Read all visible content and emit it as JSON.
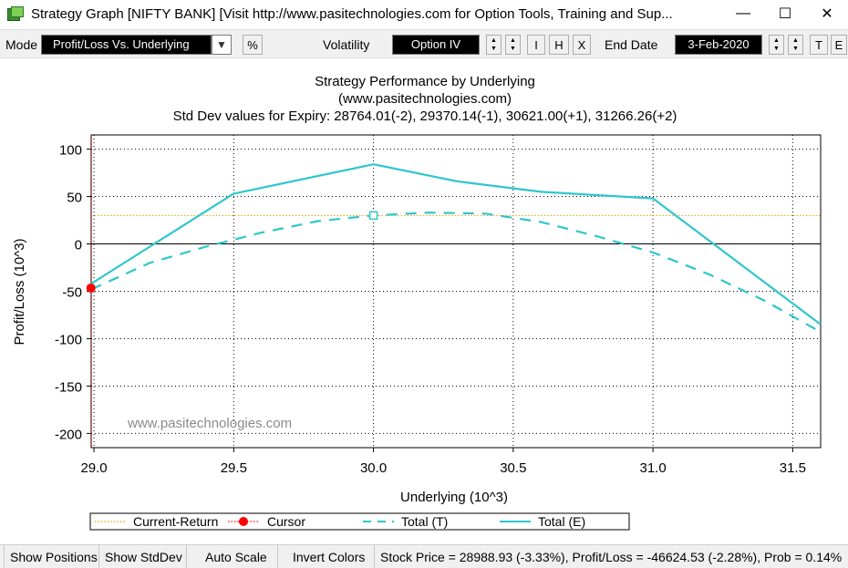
{
  "window": {
    "title": "Strategy Graph [NIFTY BANK]     [Visit  http://www.pasitechnologies.com  for Option Tools, Training and Sup...",
    "minimize_glyph": "—",
    "maximize_glyph": "☐",
    "close_glyph": "✕"
  },
  "toolbar": {
    "mode_label": "Mode",
    "mode_value": "Profit/Loss Vs. Underlying",
    "percent_button": "%",
    "volatility_label": "Volatility",
    "volatility_value": "Option IV",
    "i_button": "I",
    "h_button": "H",
    "x_button": "X",
    "end_date_label": "End Date",
    "end_date_value": "3-Feb-2020",
    "t_button": "T",
    "e_button": "E"
  },
  "chart_data": {
    "type": "line",
    "title": "Strategy Performance by Underlying",
    "subtitle": "(www.pasitechnologies.com)",
    "subtitle2": "Std Dev values for Expiry: 28764.01(-2), 29370.14(-1), 30621.00(+1), 31266.26(+2)",
    "xlabel": "Underlying (10^3)",
    "ylabel": "Profit/Loss (10^3)",
    "watermark": "www.pasitechnologies.com",
    "xlim": [
      28.99,
      31.6
    ],
    "ylim": [
      -215,
      115
    ],
    "x_ticks": [
      "29.0",
      "29.5",
      "30.0",
      "30.5",
      "31.0",
      "31.5"
    ],
    "x_tick_values": [
      29.0,
      29.5,
      30.0,
      30.5,
      31.0,
      31.5
    ],
    "y_ticks": [
      "100",
      "50",
      "0",
      "-50",
      "-100",
      "-150",
      "-200"
    ],
    "y_tick_values": [
      100,
      50,
      0,
      -50,
      -100,
      -150,
      -200
    ],
    "grid": true,
    "legend_position": "bottom",
    "current_return": 30,
    "cursor": {
      "x": 28.989,
      "y": -46.6
    },
    "series": [
      {
        "name": "Total (E)",
        "color": "#2ec6cc",
        "style": "solid",
        "points": [
          [
            28.99,
            -42
          ],
          [
            29.5,
            53
          ],
          [
            30.0,
            84
          ],
          [
            30.3,
            66
          ],
          [
            30.6,
            55
          ],
          [
            31.0,
            48
          ],
          [
            31.6,
            -85
          ]
        ]
      },
      {
        "name": "Total (T)",
        "color": "#2ec6cc",
        "style": "dashed",
        "points": [
          [
            28.99,
            -48
          ],
          [
            29.2,
            -20
          ],
          [
            29.4,
            -3
          ],
          [
            29.6,
            12
          ],
          [
            29.8,
            24
          ],
          [
            30.0,
            30
          ],
          [
            30.2,
            33
          ],
          [
            30.4,
            32
          ],
          [
            30.6,
            23
          ],
          [
            30.8,
            8
          ],
          [
            31.0,
            -9
          ],
          [
            31.2,
            -32
          ],
          [
            31.4,
            -60
          ],
          [
            31.6,
            -93
          ]
        ]
      }
    ],
    "legend": [
      {
        "name": "Current-Return",
        "color": "#e0a000",
        "style": "dotted"
      },
      {
        "name": "Cursor",
        "color": "#ff0000",
        "style": "marker"
      },
      {
        "name": "Total (T)",
        "color": "#2ec6cc",
        "style": "dashed"
      },
      {
        "name": "Total (E)",
        "color": "#2ec6cc",
        "style": "solid"
      }
    ]
  },
  "statusbar": {
    "show_positions": "Show Positions",
    "show_stddev": "Show StdDev",
    "auto_scale": "Auto Scale",
    "invert_colors": "Invert Colors",
    "info": "Stock Price = 28988.93 (-3.33%), Profit/Loss = -46624.53 (-2.28%), Prob = 0.14%"
  }
}
